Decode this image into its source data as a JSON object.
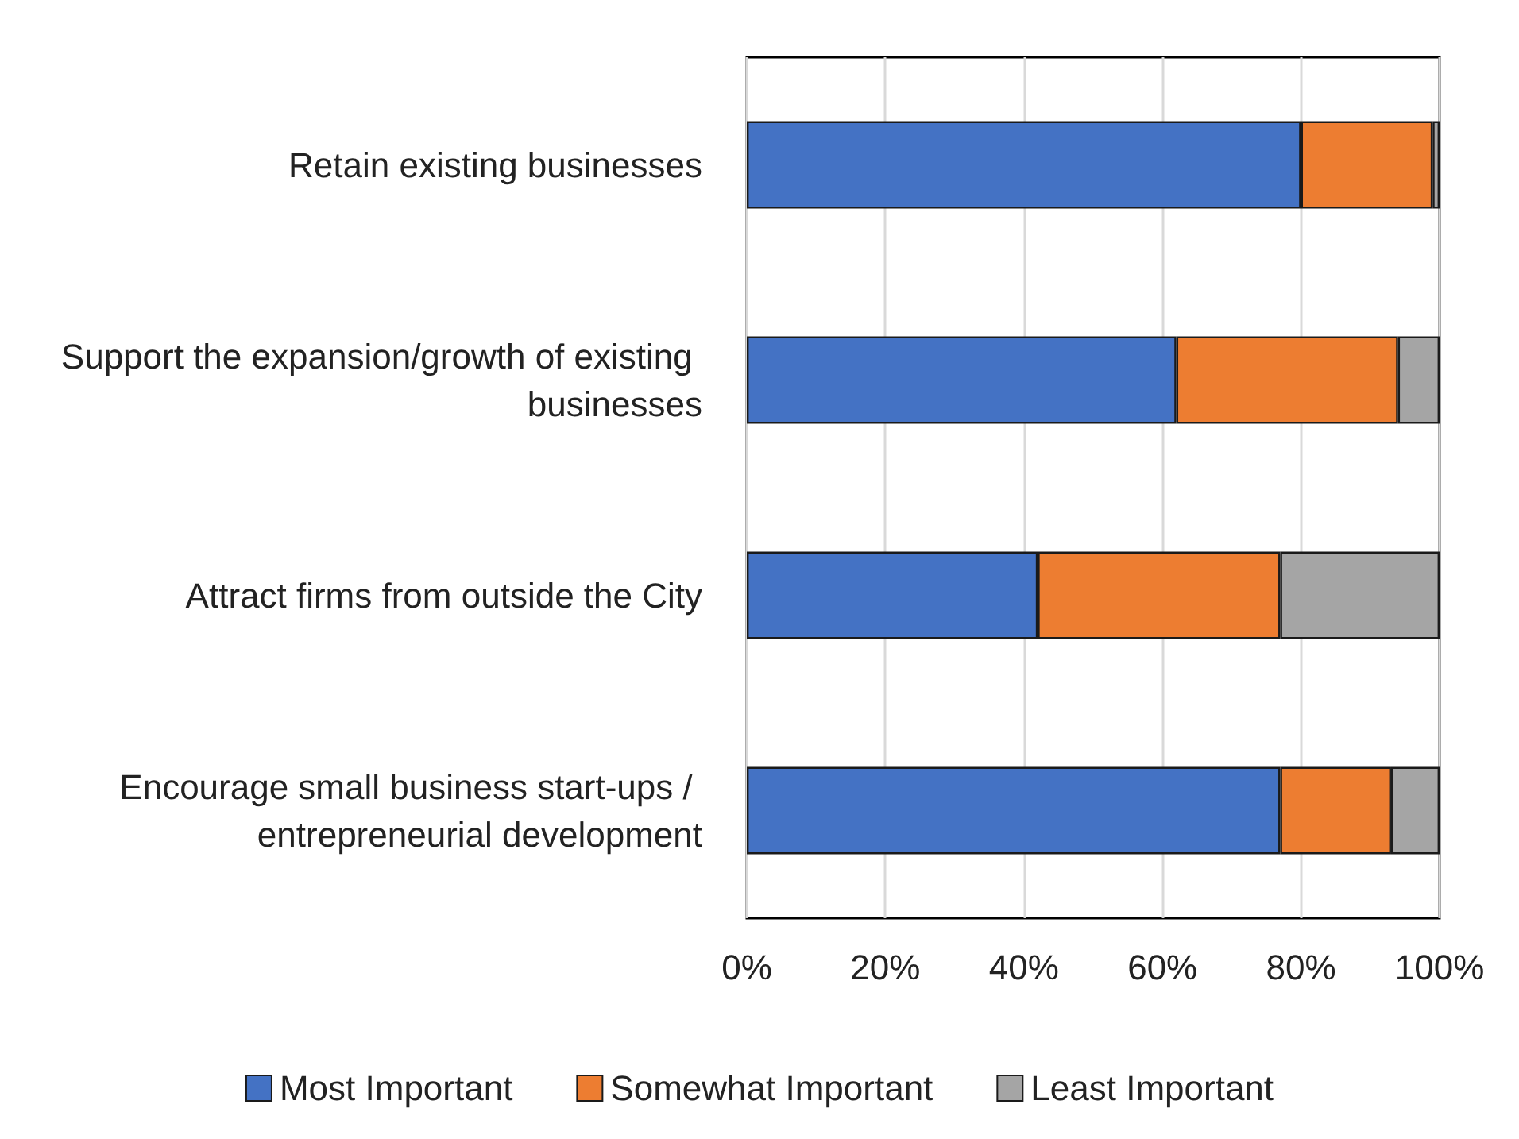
{
  "chart_data": {
    "type": "bar",
    "orientation": "horizontal",
    "stacked": true,
    "categories": [
      "Retain existing businesses",
      "Support the expansion/growth of existing businesses",
      "Attract firms from outside the City",
      "Encourage small business start-ups / entrepreneurial development"
    ],
    "series": [
      {
        "name": "Most Important",
        "color": "#4472c4",
        "values": [
          80,
          62,
          42,
          77
        ]
      },
      {
        "name": "Somewhat Important",
        "color": "#ed7d31",
        "values": [
          19,
          32,
          35,
          16
        ]
      },
      {
        "name": "Least Important",
        "color": "#a5a5a5",
        "values": [
          1,
          6,
          23,
          7
        ]
      }
    ],
    "xlim": [
      0,
      100
    ],
    "xticks": [
      {
        "value": 0,
        "label": "0%"
      },
      {
        "value": 20,
        "label": "20%"
      },
      {
        "value": 40,
        "label": "40%"
      },
      {
        "value": 60,
        "label": "60%"
      },
      {
        "value": 80,
        "label": "80%"
      },
      {
        "value": 100,
        "label": "100%"
      }
    ],
    "grid": "x",
    "legend": "bottom"
  }
}
